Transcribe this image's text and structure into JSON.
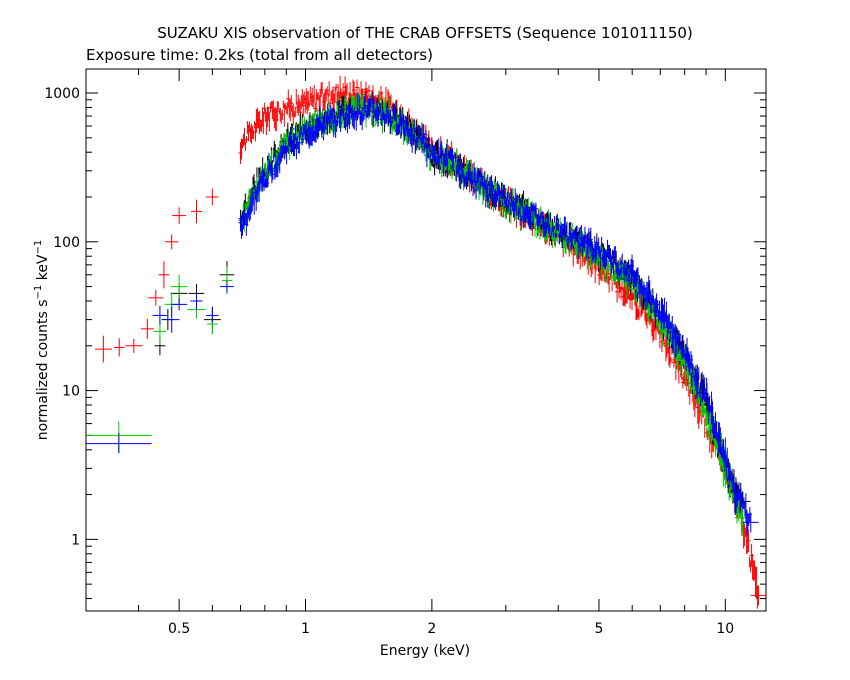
{
  "chart_data": {
    "type": "scatter",
    "title": "SUZAKU XIS observation of THE CRAB OFFSETS (Sequence 101011150)",
    "subtitle": "Exposure time: 0.2ks (total from all detectors)",
    "xlabel": "Energy (keV)",
    "ylabel_main": "normalized counts s",
    "ylabel_sup1": "−1",
    "ylabel_mid": " keV",
    "ylabel_sup2": "−1",
    "x_scale": "log",
    "y_scale": "log",
    "xlim": [
      0.3,
      12.5
    ],
    "ylim": [
      0.33,
      1450
    ],
    "x_ticks": [
      {
        "value": 0.5,
        "label": "0.5"
      },
      {
        "value": 1,
        "label": "1"
      },
      {
        "value": 2,
        "label": "2"
      },
      {
        "value": 5,
        "label": "5"
      },
      {
        "value": 10,
        "label": "10"
      }
    ],
    "y_ticks": [
      {
        "value": 1,
        "label": "1"
      },
      {
        "value": 10,
        "label": "10"
      },
      {
        "value": 100,
        "label": "100"
      },
      {
        "value": 1000,
        "label": "1000"
      }
    ],
    "grid": false,
    "legend": "none",
    "series": [
      {
        "color": "#ff0000",
        "points": [
          [
            0.33,
            19
          ],
          [
            0.36,
            19.5
          ],
          [
            0.39,
            20
          ],
          [
            0.42,
            26
          ],
          [
            0.44,
            42
          ],
          [
            0.46,
            60
          ],
          [
            0.48,
            100
          ],
          [
            0.5,
            150
          ],
          [
            0.55,
            160
          ],
          [
            0.6,
            200
          ],
          [
            0.7,
            450
          ],
          [
            0.8,
            700
          ],
          [
            0.9,
            800
          ],
          [
            1.0,
            850
          ],
          [
            1.1,
            950
          ],
          [
            1.2,
            1000
          ],
          [
            1.3,
            980
          ],
          [
            1.4,
            950
          ],
          [
            1.5,
            900
          ],
          [
            1.7,
            700
          ],
          [
            1.9,
            500
          ],
          [
            2.0,
            400
          ],
          [
            2.2,
            360
          ],
          [
            2.5,
            260
          ],
          [
            3.0,
            180
          ],
          [
            3.5,
            140
          ],
          [
            4.0,
            110
          ],
          [
            4.5,
            85
          ],
          [
            5.0,
            68
          ],
          [
            6.0,
            42
          ],
          [
            7.0,
            25
          ],
          [
            8.0,
            12
          ],
          [
            9.0,
            6
          ],
          [
            10.0,
            3
          ],
          [
            11.0,
            1.3
          ],
          [
            12.0,
            0.42
          ]
        ],
        "color_label": "red"
      },
      {
        "color": "#000000",
        "points": [
          [
            0.45,
            20
          ],
          [
            0.47,
            30
          ],
          [
            0.5,
            45
          ],
          [
            0.55,
            45
          ],
          [
            0.6,
            30
          ],
          [
            0.65,
            60
          ],
          [
            0.7,
            140
          ],
          [
            0.8,
            300
          ],
          [
            0.9,
            470
          ],
          [
            1.0,
            570
          ],
          [
            1.1,
            650
          ],
          [
            1.2,
            710
          ],
          [
            1.3,
            760
          ],
          [
            1.4,
            780
          ],
          [
            1.5,
            760
          ],
          [
            1.7,
            620
          ],
          [
            1.9,
            480
          ],
          [
            2.0,
            380
          ],
          [
            2.2,
            360
          ],
          [
            2.5,
            260
          ],
          [
            3.0,
            190
          ],
          [
            3.5,
            150
          ],
          [
            4.0,
            120
          ],
          [
            4.5,
            100
          ],
          [
            5.0,
            85
          ],
          [
            6.0,
            55
          ],
          [
            7.0,
            32
          ],
          [
            8.0,
            17
          ],
          [
            9.0,
            8
          ],
          [
            10.0,
            3.2
          ],
          [
            10.5,
            2.2
          ],
          [
            11.0,
            1.8
          ]
        ],
        "color_label": "black"
      },
      {
        "color": "#00cc00",
        "points": [
          [
            0.45,
            25
          ],
          [
            0.48,
            38
          ],
          [
            0.5,
            50
          ],
          [
            0.55,
            35
          ],
          [
            0.6,
            28
          ],
          [
            0.65,
            55
          ],
          [
            0.7,
            130
          ],
          [
            0.8,
            290
          ],
          [
            0.9,
            460
          ],
          [
            1.0,
            560
          ],
          [
            1.1,
            640
          ],
          [
            1.2,
            700
          ],
          [
            1.3,
            750
          ],
          [
            1.4,
            770
          ],
          [
            1.5,
            750
          ],
          [
            1.7,
            610
          ],
          [
            1.9,
            470
          ],
          [
            2.0,
            375
          ],
          [
            2.2,
            355
          ],
          [
            2.5,
            255
          ],
          [
            3.0,
            185
          ],
          [
            3.5,
            145
          ],
          [
            4.0,
            115
          ],
          [
            4.5,
            95
          ],
          [
            5.0,
            80
          ],
          [
            6.0,
            52
          ],
          [
            7.0,
            30
          ],
          [
            8.0,
            15
          ],
          [
            9.0,
            7
          ],
          [
            10.0,
            3
          ],
          [
            10.5,
            1.8
          ],
          [
            11.0,
            1.4
          ]
        ],
        "color_label": "green"
      },
      {
        "color": "#0000ff",
        "points": [
          [
            0.45,
            32
          ],
          [
            0.48,
            30
          ],
          [
            0.5,
            38
          ],
          [
            0.55,
            40
          ],
          [
            0.6,
            32
          ],
          [
            0.65,
            50
          ],
          [
            0.7,
            120
          ],
          [
            0.8,
            270
          ],
          [
            0.9,
            430
          ],
          [
            1.0,
            530
          ],
          [
            1.1,
            610
          ],
          [
            1.2,
            680
          ],
          [
            1.3,
            730
          ],
          [
            1.4,
            760
          ],
          [
            1.5,
            740
          ],
          [
            1.7,
            620
          ],
          [
            1.9,
            480
          ],
          [
            2.0,
            380
          ],
          [
            2.2,
            350
          ],
          [
            2.5,
            260
          ],
          [
            3.0,
            190
          ],
          [
            3.5,
            150
          ],
          [
            4.0,
            120
          ],
          [
            4.5,
            100
          ],
          [
            5.0,
            88
          ],
          [
            6.0,
            60
          ],
          [
            7.0,
            35
          ],
          [
            8.0,
            18
          ],
          [
            9.0,
            9
          ],
          [
            10.0,
            3.6
          ],
          [
            10.5,
            2.2
          ],
          [
            11.5,
            1.3
          ]
        ],
        "color_label": "blue"
      }
    ],
    "low_energy_bins": [
      {
        "color": "#00cc00",
        "x_range": [
          0.3,
          0.43
        ],
        "y": 5.0,
        "yerr": [
          3.8,
          6.2
        ]
      },
      {
        "color": "#0000ff",
        "x_range": [
          0.3,
          0.43
        ],
        "y": 4.4,
        "yerr": [
          3.8,
          5.2
        ]
      }
    ]
  }
}
